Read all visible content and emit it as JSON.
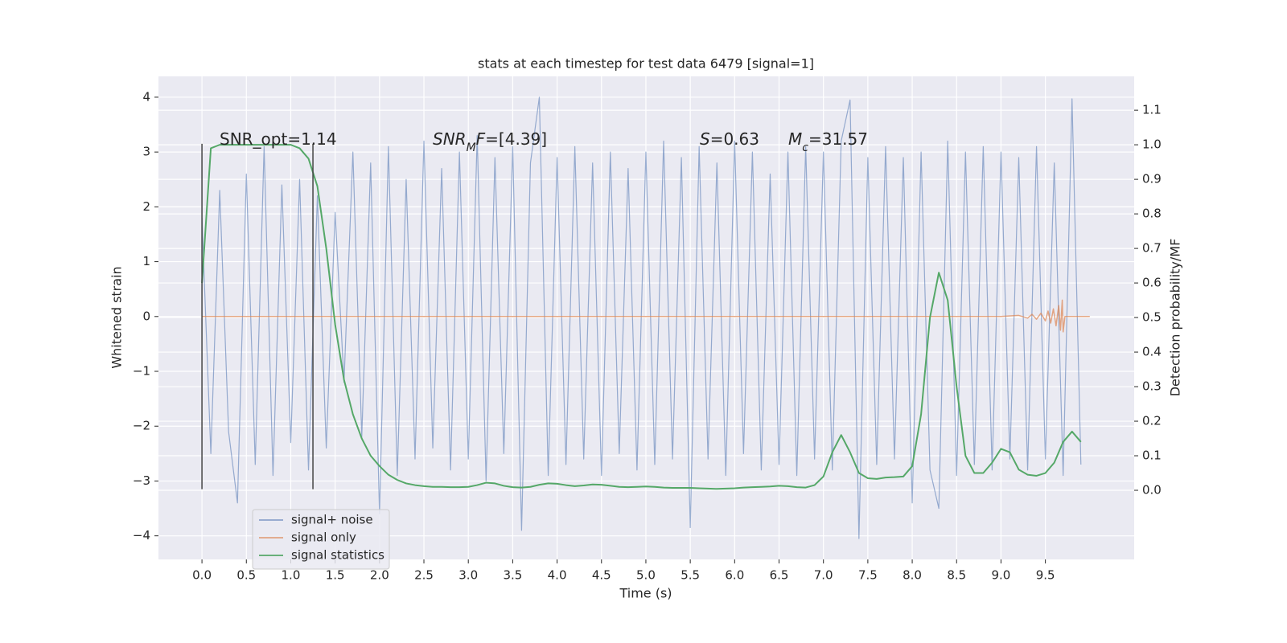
{
  "chart_data": {
    "type": "line",
    "title": "stats at each timestep for test data 6479 [signal=1]",
    "xlabel": "Time (s)",
    "ylabel": "Whitened strain",
    "y2label": "Detection probability/MF",
    "x": [
      0.0,
      0.1,
      0.2,
      0.3,
      0.4,
      0.5,
      0.6,
      0.7,
      0.8,
      0.9,
      1.0,
      1.1,
      1.2,
      1.3,
      1.4,
      1.5,
      1.6,
      1.7,
      1.8,
      1.9,
      2.0,
      2.1,
      2.2,
      2.3,
      2.4,
      2.5,
      2.6,
      2.7,
      2.8,
      2.9,
      3.0,
      3.1,
      3.2,
      3.3,
      3.4,
      3.5,
      3.6,
      3.7,
      3.8,
      3.9,
      4.0,
      4.1,
      4.2,
      4.3,
      4.4,
      4.5,
      4.6,
      4.7,
      4.8,
      4.9,
      5.0,
      5.1,
      5.2,
      5.3,
      5.4,
      5.5,
      5.6,
      5.7,
      5.8,
      5.9,
      6.0,
      6.1,
      6.2,
      6.3,
      6.4,
      6.5,
      6.6,
      6.7,
      6.8,
      6.9,
      7.0,
      7.1,
      7.2,
      7.3,
      7.4,
      7.5,
      7.6,
      7.7,
      7.8,
      7.9,
      8.0,
      8.1,
      8.2,
      8.3,
      8.4,
      8.5,
      8.6,
      8.7,
      8.8,
      8.9,
      9.0,
      9.1,
      9.2,
      9.3,
      9.4,
      9.5,
      9.6,
      9.7,
      9.8,
      9.9
    ],
    "series": [
      {
        "name": "signal+ noise",
        "color": "#4c72b0",
        "values": [
          1.8,
          -2.5,
          2.3,
          -2.1,
          -3.4,
          2.6,
          -2.7,
          3.1,
          -2.9,
          2.4,
          -2.3,
          2.5,
          -2.8,
          2.2,
          -2.4,
          1.9,
          -1.2,
          3.0,
          -2.2,
          2.8,
          -3.6,
          3.1,
          -2.9,
          2.5,
          -2.6,
          3.2,
          -2.4,
          2.7,
          -2.8,
          3.0,
          -2.6,
          3.3,
          -3.0,
          2.9,
          -2.5,
          3.1,
          -3.9,
          2.8,
          4.0,
          -2.9,
          2.9,
          -2.7,
          3.1,
          -2.6,
          2.8,
          -2.9,
          3.0,
          -2.5,
          2.7,
          -2.8,
          3.0,
          -2.7,
          3.2,
          -2.6,
          2.9,
          -3.85,
          3.1,
          -2.6,
          2.8,
          -2.9,
          3.2,
          -2.5,
          3.0,
          -2.8,
          2.6,
          -2.7,
          3.0,
          -2.9,
          3.1,
          -2.6,
          3.0,
          -2.8,
          3.2,
          3.95,
          -4.05,
          2.9,
          -2.7,
          3.1,
          -2.6,
          2.9,
          -3.4,
          3.0,
          -2.8,
          -3.5,
          3.2,
          -2.9,
          3.0,
          -2.7,
          3.1,
          -2.8,
          3.0,
          -2.6,
          2.9,
          -2.8,
          3.1,
          -2.6,
          2.8,
          -2.9,
          3.97,
          -2.7
        ]
      },
      {
        "name": "signal only",
        "color": "#dd8452",
        "x": [
          0,
          9.0,
          9.2,
          9.3,
          9.35,
          9.4,
          9.45,
          9.5,
          9.53,
          9.56,
          9.59,
          9.62,
          9.65,
          9.67,
          9.69,
          9.7,
          9.72,
          10.0
        ],
        "values": [
          0,
          0,
          0.02,
          -0.03,
          0.04,
          -0.05,
          0.06,
          -0.08,
          0.1,
          -0.12,
          0.14,
          -0.17,
          0.2,
          -0.25,
          0.3,
          -0.28,
          0,
          0
        ]
      },
      {
        "name": "signal statistics",
        "color": "#55a868",
        "axis": "y2",
        "values": [
          0.6,
          0.99,
          1.0,
          1.0,
          1.0,
          1.0,
          1.0,
          1.0,
          1.0,
          1.0,
          1.0,
          0.99,
          0.96,
          0.88,
          0.7,
          0.48,
          0.32,
          0.22,
          0.15,
          0.1,
          0.07,
          0.045,
          0.03,
          0.02,
          0.015,
          0.012,
          0.01,
          0.01,
          0.009,
          0.009,
          0.01,
          0.015,
          0.022,
          0.02,
          0.013,
          0.009,
          0.008,
          0.01,
          0.016,
          0.02,
          0.019,
          0.015,
          0.012,
          0.014,
          0.017,
          0.016,
          0.013,
          0.01,
          0.009,
          0.01,
          0.011,
          0.01,
          0.008,
          0.007,
          0.007,
          0.007,
          0.006,
          0.005,
          0.004,
          0.005,
          0.006,
          0.008,
          0.009,
          0.01,
          0.011,
          0.013,
          0.012,
          0.009,
          0.008,
          0.015,
          0.04,
          0.11,
          0.16,
          0.11,
          0.05,
          0.035,
          0.033,
          0.037,
          0.038,
          0.04,
          0.07,
          0.22,
          0.5,
          0.63,
          0.55,
          0.3,
          0.1,
          0.05,
          0.05,
          0.08,
          0.12,
          0.11,
          0.06,
          0.045,
          0.042,
          0.05,
          0.08,
          0.14,
          0.17,
          0.14
        ]
      }
    ],
    "vlines": {
      "x": [
        0,
        1.25
      ],
      "ymin": -3.15,
      "ymax": 3.15,
      "color": "#444444"
    },
    "annotations": [
      {
        "parts": [
          "SNR_opt=1.14"
        ]
      },
      {
        "parts": [
          {
            "text": "SNR",
            "italic": true
          },
          {
            "text": "M",
            "italic": true,
            "sub": true
          },
          {
            "text": "F",
            "italic": true
          },
          "=[4.39]"
        ]
      },
      {
        "parts": [
          {
            "text": "S",
            "italic": true
          },
          "=0.63"
        ]
      },
      {
        "parts": [
          {
            "text": "M",
            "italic": true
          },
          {
            "text": "c",
            "italic": true,
            "sub": true
          },
          "=31.57"
        ]
      }
    ],
    "xlim": [
      -0.49,
      10.5
    ],
    "ylim": [
      -4.43,
      4.38
    ],
    "y2lim": [
      -0.2,
      1.198
    ],
    "xticks": [
      {
        "value": 0,
        "label": "0.0"
      },
      {
        "value": 0.5,
        "label": "0.5"
      },
      {
        "value": 1,
        "label": "1.0"
      },
      {
        "value": 1.5,
        "label": "1.5"
      },
      {
        "value": 2,
        "label": "2.0"
      },
      {
        "value": 2.5,
        "label": "2.5"
      },
      {
        "value": 3,
        "label": "3.0"
      },
      {
        "value": 3.5,
        "label": "3.5"
      },
      {
        "value": 4,
        "label": "4.0"
      },
      {
        "value": 4.5,
        "label": "4.5"
      },
      {
        "value": 5,
        "label": "5.0"
      },
      {
        "value": 5.5,
        "label": "5.5"
      },
      {
        "value": 6,
        "label": "6.0"
      },
      {
        "value": 6.5,
        "label": "6.5"
      },
      {
        "value": 7,
        "label": "7.0"
      },
      {
        "value": 7.5,
        "label": "7.5"
      },
      {
        "value": 8,
        "label": "8.0"
      },
      {
        "value": 8.5,
        "label": "8.5"
      },
      {
        "value": 9,
        "label": "9.0"
      },
      {
        "value": 9.5,
        "label": "9.5"
      }
    ],
    "yticks": [
      {
        "value": -4,
        "label": "−4"
      },
      {
        "value": -3,
        "label": "−3"
      },
      {
        "value": -2,
        "label": "−2"
      },
      {
        "value": -1,
        "label": "−1"
      },
      0,
      1,
      2,
      3,
      4
    ],
    "y2ticks": [
      {
        "value": 0,
        "label": "0.0"
      },
      {
        "value": 0.1,
        "label": "0.1"
      },
      {
        "value": 0.2,
        "label": "0.2"
      },
      {
        "value": 0.3,
        "label": "0.3"
      },
      {
        "value": 0.4,
        "label": "0.4"
      },
      {
        "value": 0.5,
        "label": "0.5"
      },
      {
        "value": 0.6,
        "label": "0.6"
      },
      {
        "value": 0.7,
        "label": "0.7"
      },
      {
        "value": 0.8,
        "label": "0.8"
      },
      {
        "value": 0.9,
        "label": "0.9"
      },
      {
        "value": 1,
        "label": "1.0"
      },
      {
        "value": 1.1,
        "label": "1.1"
      }
    ],
    "grid": true,
    "background": "#eaeaf2",
    "legend": "lower left"
  }
}
